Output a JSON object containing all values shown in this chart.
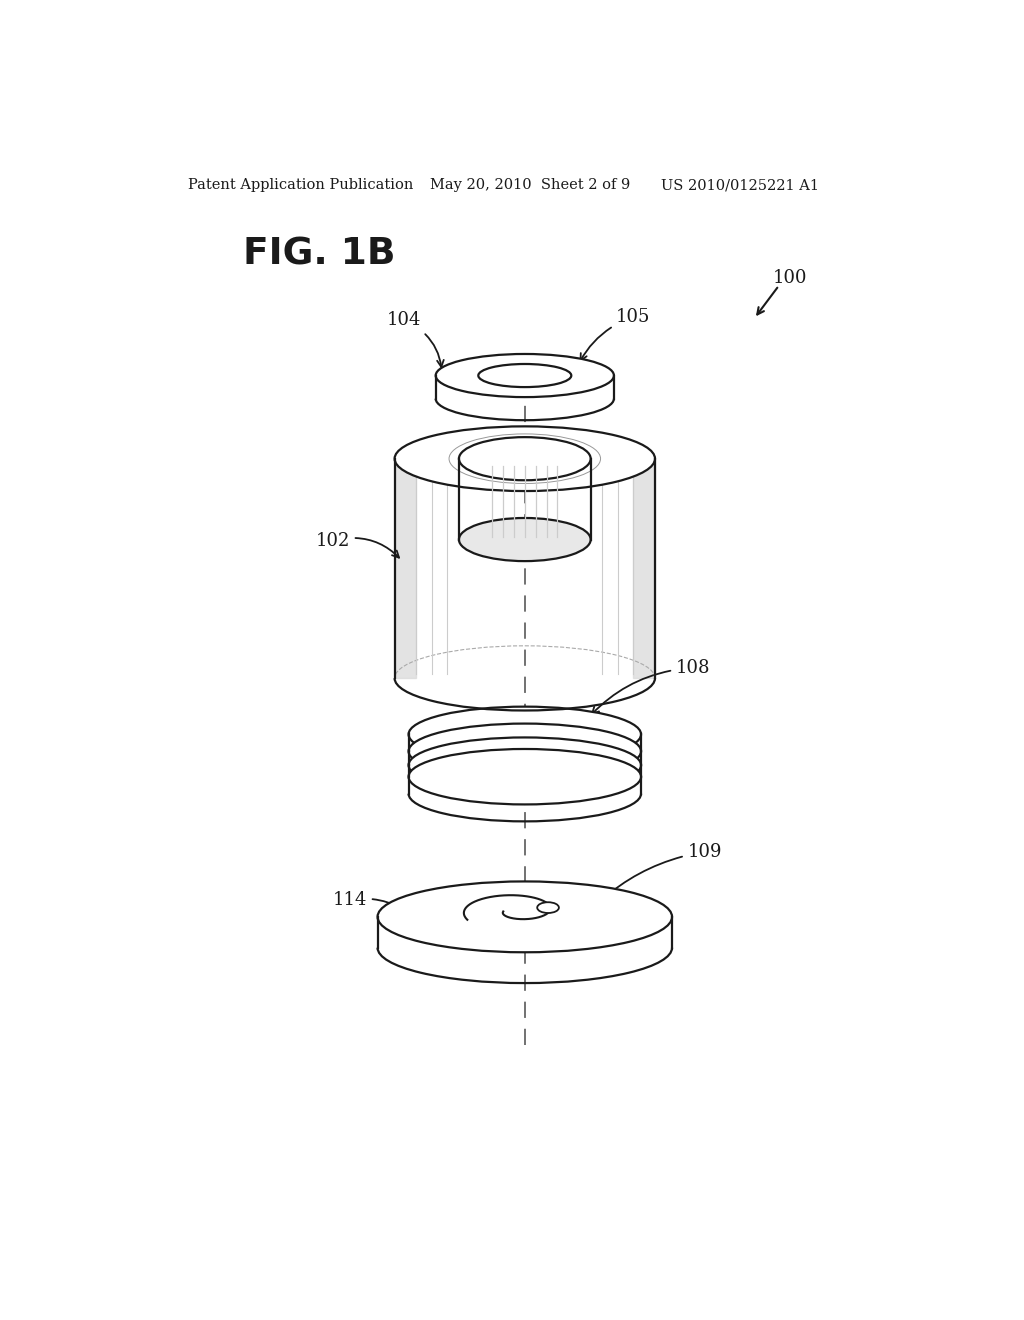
{
  "header_left": "Patent Application Publication",
  "header_mid": "May 20, 2010  Sheet 2 of 9",
  "header_right": "US 2010/0125221 A1",
  "fig_label": "FIG. 1B",
  "label_100": "100",
  "label_102": "102",
  "label_104": "104",
  "label_105": "105",
  "label_108": "108",
  "label_109": "109",
  "label_114": "114",
  "bg_color": "#ffffff",
  "line_color": "#1a1a1a",
  "dashed_color": "#666666",
  "gray_light": "#d8d8d8",
  "gray_mid": "#b0b0b0"
}
